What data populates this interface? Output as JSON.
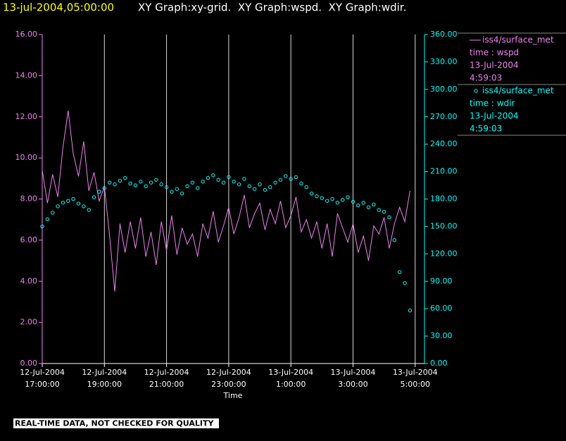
{
  "chart_data": {
    "type": "line",
    "title": "13-jul-2004,05:00:00",
    "subtitle": "XY Graph:xy-grid.  XY Graph:wspd.  XY Graph:wdir.",
    "xlabel": "Time",
    "footer": "REAL-TIME DATA, NOT CHECKED FOR QUALITY",
    "xlim": [
      "2004-07-12 17:00",
      "2004-07-13 05:18"
    ],
    "xticks": [
      {
        "value": "2004-07-12 17:00",
        "label": [
          "12-Jul-2004",
          "17:00:00"
        ]
      },
      {
        "value": "2004-07-12 19:00",
        "label": [
          "12-Jul-2004",
          "19:00:00"
        ]
      },
      {
        "value": "2004-07-12 21:00",
        "label": [
          "12-Jul-2004",
          "21:00:00"
        ]
      },
      {
        "value": "2004-07-12 23:00",
        "label": [
          "12-Jul-2004",
          "23:00:00"
        ]
      },
      {
        "value": "2004-07-13 01:00",
        "label": [
          "13-Jul-2004",
          "1:00:00"
        ]
      },
      {
        "value": "2004-07-13 03:00",
        "label": [
          "13-Jul-2004",
          "3:00:00"
        ]
      },
      {
        "value": "2004-07-13 05:00",
        "label": [
          "13-Jul-2004",
          "5:00:00"
        ]
      }
    ],
    "grid": true,
    "ylim": [
      0,
      16
    ],
    "yticks": [
      {
        "value": 0,
        "label": "0.00"
      },
      {
        "value": 2,
        "label": "2.00"
      },
      {
        "value": 4,
        "label": "4.00"
      },
      {
        "value": 6,
        "label": "6.00"
      },
      {
        "value": 8,
        "label": "8.00"
      },
      {
        "value": 10,
        "label": "10.00"
      },
      {
        "value": 12,
        "label": "12.00"
      },
      {
        "value": 14,
        "label": "14.00"
      },
      {
        "value": 16,
        "label": "16.00"
      }
    ],
    "y2lim": [
      0,
      360
    ],
    "y2ticks": [
      {
        "value": 0,
        "label": "0.00"
      },
      {
        "value": 30,
        "label": "30.00"
      },
      {
        "value": 60,
        "label": "60.00"
      },
      {
        "value": 90,
        "label": "90.00"
      },
      {
        "value": 120,
        "label": "120.00"
      },
      {
        "value": 150,
        "label": "150.00"
      },
      {
        "value": 180,
        "label": "180.00"
      },
      {
        "value": 210,
        "label": "210.00"
      },
      {
        "value": 240,
        "label": "240.00"
      },
      {
        "value": 270,
        "label": "270.00"
      },
      {
        "value": 300,
        "label": "300.00"
      },
      {
        "value": 330,
        "label": "330.00"
      },
      {
        "value": 360,
        "label": "360.00"
      }
    ],
    "x": [
      "2004-07-12 17:00",
      "2004-07-12 17:10",
      "2004-07-12 17:20",
      "2004-07-12 17:30",
      "2004-07-12 17:40",
      "2004-07-12 17:50",
      "2004-07-12 18:00",
      "2004-07-12 18:10",
      "2004-07-12 18:20",
      "2004-07-12 18:30",
      "2004-07-12 18:40",
      "2004-07-12 18:50",
      "2004-07-12 19:00",
      "2004-07-12 19:10",
      "2004-07-12 19:20",
      "2004-07-12 19:30",
      "2004-07-12 19:40",
      "2004-07-12 19:50",
      "2004-07-12 20:00",
      "2004-07-12 20:10",
      "2004-07-12 20:20",
      "2004-07-12 20:30",
      "2004-07-12 20:40",
      "2004-07-12 20:50",
      "2004-07-12 21:00",
      "2004-07-12 21:10",
      "2004-07-12 21:20",
      "2004-07-12 21:30",
      "2004-07-12 21:40",
      "2004-07-12 21:50",
      "2004-07-12 22:00",
      "2004-07-12 22:10",
      "2004-07-12 22:20",
      "2004-07-12 22:30",
      "2004-07-12 22:40",
      "2004-07-12 22:50",
      "2004-07-12 23:00",
      "2004-07-12 23:10",
      "2004-07-12 23:20",
      "2004-07-12 23:30",
      "2004-07-12 23:40",
      "2004-07-12 23:50",
      "2004-07-13 00:00",
      "2004-07-13 00:10",
      "2004-07-13 00:20",
      "2004-07-13 00:30",
      "2004-07-13 00:40",
      "2004-07-13 00:50",
      "2004-07-13 01:00",
      "2004-07-13 01:10",
      "2004-07-13 01:20",
      "2004-07-13 01:30",
      "2004-07-13 01:40",
      "2004-07-13 01:50",
      "2004-07-13 02:00",
      "2004-07-13 02:10",
      "2004-07-13 02:20",
      "2004-07-13 02:30",
      "2004-07-13 02:40",
      "2004-07-13 02:50",
      "2004-07-13 03:00",
      "2004-07-13 03:10",
      "2004-07-13 03:20",
      "2004-07-13 03:30",
      "2004-07-13 03:40",
      "2004-07-13 03:50",
      "2004-07-13 04:00",
      "2004-07-13 04:10",
      "2004-07-13 04:20",
      "2004-07-13 04:30",
      "2004-07-13 04:40",
      "2004-07-13 04:50"
    ],
    "series": [
      {
        "name": "iss4/surface_met",
        "color": "#ee82ee",
        "legend_lines": [
          "time : wspd",
          "13-Jul-2004",
          "4:59:03"
        ],
        "values": [
          9.4,
          7.8,
          9.2,
          8.1,
          10.5,
          12.3,
          10.2,
          9.1,
          10.8,
          8.4,
          9.3,
          7.9,
          8.6,
          6.2,
          3.5,
          6.8,
          5.4,
          6.9,
          5.6,
          7.1,
          5.2,
          6.4,
          4.8,
          6.9,
          5.5,
          7.2,
          5.3,
          6.6,
          5.8,
          6.3,
          5.2,
          6.8,
          6.1,
          7.4,
          5.9,
          6.7,
          7.6,
          6.3,
          7.1,
          8.2,
          6.6,
          7.3,
          7.8,
          6.5,
          7.5,
          6.8,
          7.9,
          6.6,
          7.2,
          8.1,
          6.4,
          7.0,
          6.1,
          6.9,
          5.6,
          6.8,
          5.2,
          7.3,
          6.6,
          5.9,
          6.8,
          5.4,
          6.2,
          5.0,
          6.7,
          6.3,
          7.1,
          5.6,
          6.8,
          7.6,
          6.9,
          8.4
        ]
      },
      {
        "name": "iss4/surface_met",
        "color": "#00ffff",
        "axis": "y2",
        "marker": "circle",
        "legend_lines": [
          "time : wdir",
          "13-Jul-2004",
          "4:59:03"
        ],
        "values": [
          150,
          158,
          165,
          172,
          176,
          178,
          180,
          175,
          172,
          168,
          182,
          188,
          192,
          198,
          196,
          200,
          203,
          197,
          195,
          199,
          194,
          198,
          201,
          196,
          193,
          188,
          191,
          186,
          194,
          198,
          192,
          199,
          203,
          206,
          201,
          198,
          204,
          199,
          196,
          202,
          194,
          191,
          196,
          190,
          193,
          198,
          201,
          205,
          202,
          204,
          197,
          193,
          186,
          183,
          181,
          178,
          180,
          176,
          179,
          182,
          177,
          173,
          176,
          171,
          174,
          168,
          166,
          160,
          135,
          100,
          88,
          58
        ]
      }
    ]
  }
}
